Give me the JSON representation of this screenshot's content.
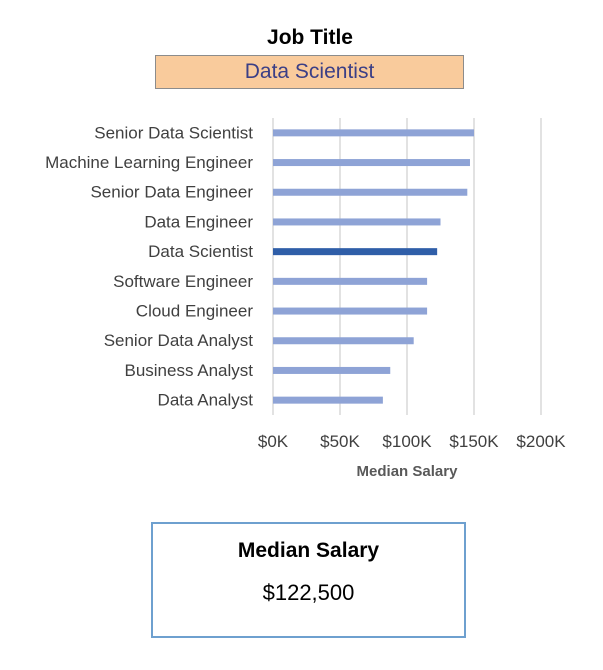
{
  "header": {
    "label": "Job Title",
    "selected_job": "Data Scientist"
  },
  "summary": {
    "title": "Median Salary",
    "value": "$122,500"
  },
  "colors": {
    "bar": "#8ea3d6",
    "highlight": "#2f5ea8",
    "grid": "#d9d9d9",
    "select_bg": "#f9cb9c",
    "card_border": "#6ea0cf"
  },
  "chart_data": {
    "type": "bar",
    "orientation": "horizontal",
    "categories": [
      "Senior Data Scientist",
      "Machine Learning Engineer",
      "Senior Data Engineer",
      "Data Engineer",
      "Data Scientist",
      "Software Engineer",
      "Cloud Engineer",
      "Senior Data Analyst",
      "Business Analyst",
      "Data Analyst"
    ],
    "values": [
      150000,
      147000,
      145000,
      125000,
      122500,
      115000,
      115000,
      105000,
      87500,
      82000
    ],
    "highlight": "Data Scientist",
    "xlabel": "Median Salary",
    "ylabel": "",
    "xlim": [
      0,
      200000
    ],
    "xticks": [
      0,
      50000,
      100000,
      150000,
      200000
    ],
    "xtick_labels": [
      "$0K",
      "$50K",
      "$100K",
      "$150K",
      "$200K"
    ],
    "grid": "vertical"
  }
}
